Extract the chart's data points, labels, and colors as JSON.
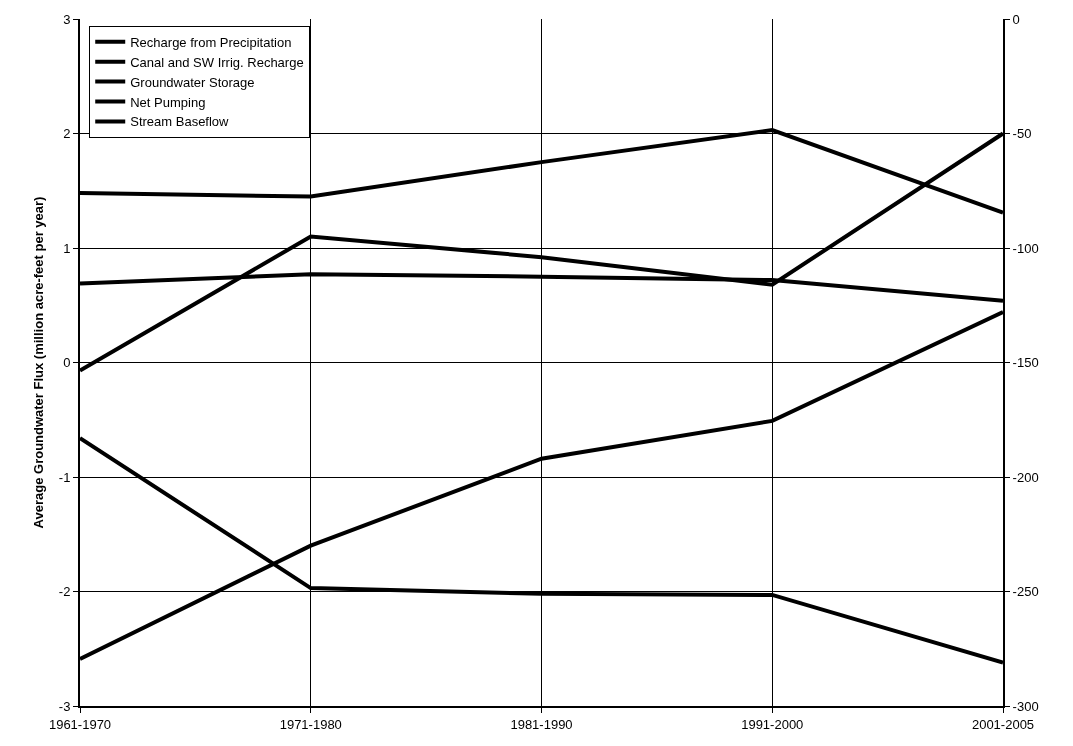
{
  "chart_data": {
    "type": "line",
    "ylabel": "Average Groundwater Flux (million acre-feet per year)",
    "categories": [
      "1961-1970",
      "1971-1980",
      "1981-1990",
      "1991-2000",
      "2001-2005"
    ],
    "series": [
      {
        "name": "Recharge from Precipitation",
        "color": "#000000",
        "values": [
          1.48,
          1.45,
          1.75,
          2.03,
          1.31
        ]
      },
      {
        "name": "Canal and SW Irrig. Recharge",
        "color": "#000000",
        "values": [
          0.69,
          0.77,
          0.75,
          0.72,
          0.54
        ]
      },
      {
        "name": "Groundwater Storage",
        "color": "#000000",
        "values": [
          -0.07,
          1.1,
          0.92,
          0.68,
          2.0
        ]
      },
      {
        "name": "Net Pumping",
        "color": "#000000",
        "axis": "y2",
        "values": [
          -183,
          -248.5,
          -251,
          -251.5,
          -281
        ]
      },
      {
        "name": "Stream Baseflow",
        "color": "#000000",
        "values": [
          -2.59,
          -1.6,
          -0.84,
          -0.51,
          0.44
        ]
      }
    ],
    "ylim": [
      -3,
      3
    ],
    "yticks": [
      -3,
      -2,
      -1,
      0,
      1,
      2,
      3
    ],
    "y2lim": [
      -300,
      0
    ],
    "y2ticks": [
      -300,
      -250,
      -200,
      -150,
      -100,
      -50,
      0
    ],
    "grid": true,
    "legend": "top left",
    "marker": "none",
    "line_style": "solid"
  }
}
